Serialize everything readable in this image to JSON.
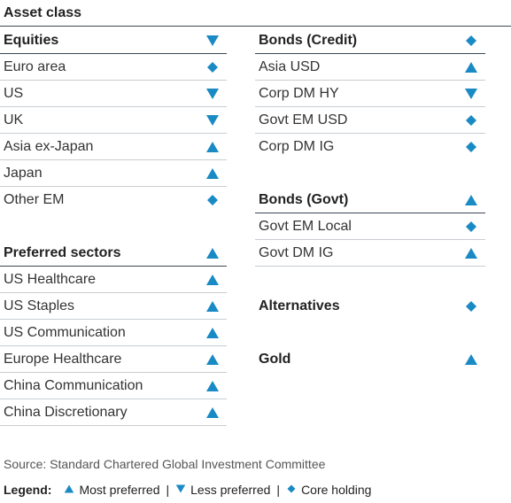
{
  "title": "Asset class",
  "colors": {
    "accent": "#1a8ac4",
    "rule_dark": "#3a4a55",
    "rule_light": "#c9ced2"
  },
  "left": {
    "equities": {
      "header": "Equities",
      "indicator": "down",
      "items": [
        {
          "label": "Euro area",
          "indicator": "diamond"
        },
        {
          "label": "US",
          "indicator": "down"
        },
        {
          "label": "UK",
          "indicator": "down"
        },
        {
          "label": "Asia ex-Japan",
          "indicator": "up"
        },
        {
          "label": "Japan",
          "indicator": "up"
        },
        {
          "label": "Other EM",
          "indicator": "diamond"
        }
      ]
    },
    "sectors": {
      "header": "Preferred sectors",
      "indicator": "up",
      "items": [
        {
          "label": "US Healthcare",
          "indicator": "up"
        },
        {
          "label": "US Staples",
          "indicator": "up"
        },
        {
          "label": "US Communication",
          "indicator": "up"
        },
        {
          "label": "Europe Healthcare",
          "indicator": "up"
        },
        {
          "label": "China Communication",
          "indicator": "up"
        },
        {
          "label": "China Discretionary",
          "indicator": "up"
        }
      ]
    }
  },
  "right": {
    "credit": {
      "header": "Bonds (Credit)",
      "indicator": "diamond",
      "items": [
        {
          "label": "Asia USD",
          "indicator": "up"
        },
        {
          "label": "Corp DM HY",
          "indicator": "down"
        },
        {
          "label": "Govt EM USD",
          "indicator": "diamond"
        },
        {
          "label": "Corp DM IG",
          "indicator": "diamond"
        }
      ]
    },
    "govt": {
      "header": "Bonds (Govt)",
      "indicator": "up",
      "items": [
        {
          "label": "Govt EM Local",
          "indicator": "diamond"
        },
        {
          "label": "Govt DM IG",
          "indicator": "up"
        }
      ]
    },
    "alternatives": {
      "label": "Alternatives",
      "indicator": "diamond"
    },
    "gold": {
      "label": "Gold",
      "indicator": "up"
    }
  },
  "source": "Source: Standard Chartered Global Investment Committee",
  "legend": {
    "title": "Legend:",
    "items": [
      {
        "label": "Most preferred",
        "indicator": "up"
      },
      {
        "label": "Less preferred",
        "indicator": "down"
      },
      {
        "label": "Core holding",
        "indicator": "diamond"
      }
    ],
    "separator": "|"
  }
}
